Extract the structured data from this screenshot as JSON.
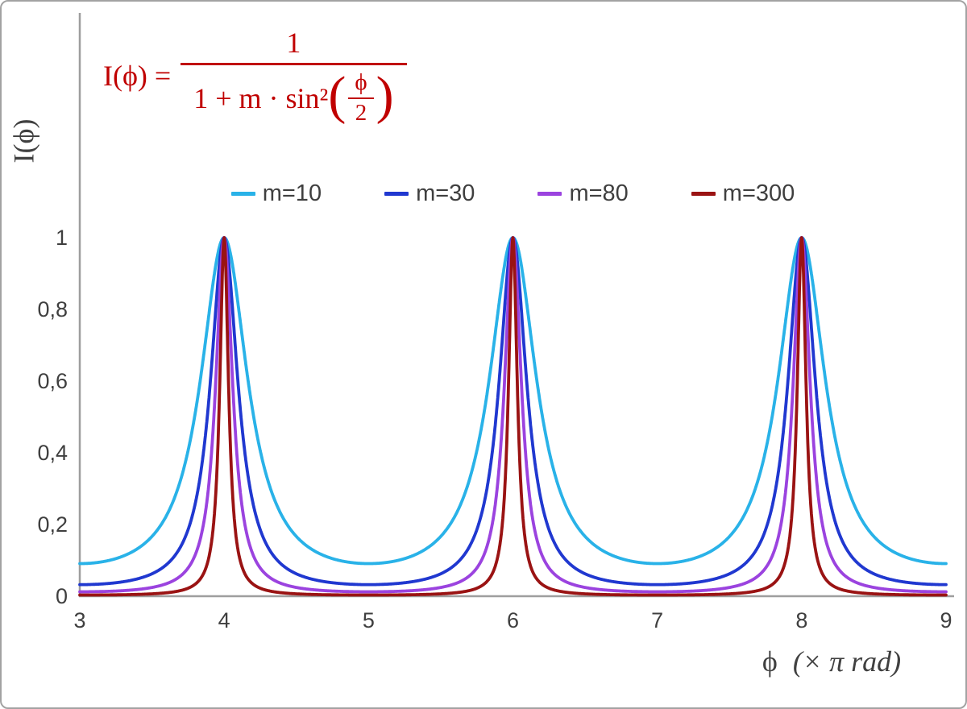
{
  "formula": {
    "lhs": "I(ϕ) =",
    "numerator": "1",
    "denominator_prefix": "1 + m · sin²",
    "open_paren": "(",
    "inner_numerator": "ϕ",
    "inner_denominator": "2",
    "close_paren": ")",
    "color": "#c00000"
  },
  "axes": {
    "y_title": "I(ϕ)",
    "x_title_phi": "ϕ",
    "x_title_units": "(× π rad)"
  },
  "chart_data": {
    "type": "line",
    "title": "",
    "xlabel": "ϕ (× π rad)",
    "ylabel": "I(ϕ)",
    "xlim": [
      3,
      9
    ],
    "ylim": [
      0,
      1
    ],
    "x_ticks": [
      {
        "value": 3,
        "label": "3"
      },
      {
        "value": 4,
        "label": "4"
      },
      {
        "value": 5,
        "label": "5"
      },
      {
        "value": 6,
        "label": "6"
      },
      {
        "value": 7,
        "label": "7"
      },
      {
        "value": 8,
        "label": "8"
      },
      {
        "value": 9,
        "label": "9"
      }
    ],
    "y_ticks": [
      {
        "value": 0,
        "label": "0"
      },
      {
        "value": 0.2,
        "label": "0,2"
      },
      {
        "value": 0.4,
        "label": "0,4"
      },
      {
        "value": 0.6,
        "label": "0,6"
      },
      {
        "value": 0.8,
        "label": "0,8"
      },
      {
        "value": 1,
        "label": "1"
      }
    ],
    "function": "I(phi) = 1 / (1 + m * sin^2(phi/2)) with phi measured in units of pi rad; peaks of I=1 at phi = 4, 6, 8 (even multiples of pi); minima between peaks equal 1/(1+m)",
    "series": [
      {
        "name": "m=10",
        "m": 10,
        "color": "#29b2e8"
      },
      {
        "name": "m=30",
        "m": 30,
        "color": "#2038d0"
      },
      {
        "name": "m=80",
        "m": 80,
        "color": "#9b43df"
      },
      {
        "name": "m=300",
        "m": 300,
        "color": "#9a1313"
      }
    ],
    "legend_position": "top-center",
    "grid": false,
    "axis_color": "#9e9e9e",
    "sample_step": 0.0025
  }
}
